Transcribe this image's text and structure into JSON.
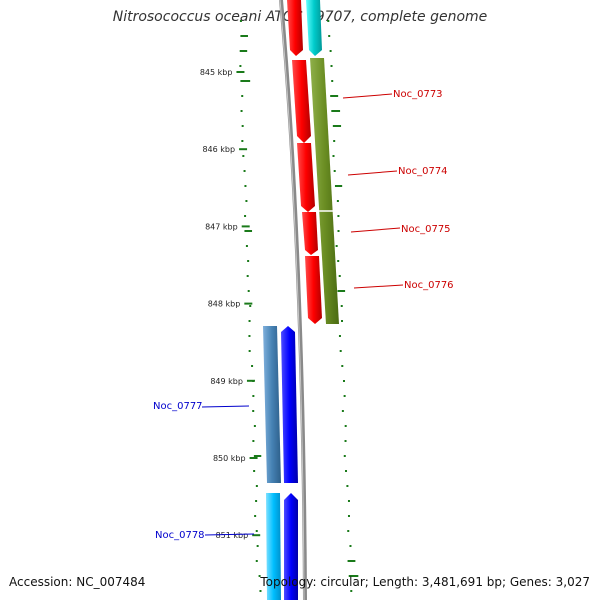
{
  "title": "Nitrosococcus oceani ATCC 19707, complete genome",
  "accession": "Accession: NC_007484",
  "topology": "Topology: circular; Length: 3,481,691 bp; Genes: 3,027",
  "ticks": [
    {
      "label": "845 kbp",
      "kbp": 845
    },
    {
      "label": "846 kbp",
      "kbp": 846
    },
    {
      "label": "847 kbp",
      "kbp": 847
    },
    {
      "label": "848 kbp",
      "kbp": 848
    },
    {
      "label": "849 kbp",
      "kbp": 849
    },
    {
      "label": "850 kbp",
      "kbp": 850
    },
    {
      "label": "851 kbp",
      "kbp": 851
    }
  ],
  "genes_forward_labeled": [
    {
      "name": "Noc_0773",
      "color": "#cc0000"
    },
    {
      "name": "Noc_0774",
      "color": "#cc0000"
    },
    {
      "name": "Noc_0775",
      "color": "#cc0000"
    },
    {
      "name": "Noc_0776",
      "color": "#cc0000"
    }
  ],
  "genes_reverse_labeled": [
    {
      "name": "Noc_0777",
      "color": "#0000cc"
    },
    {
      "name": "Noc_0778",
      "color": "#0000cc"
    }
  ],
  "colors": {
    "cds_forward": "#ff0000",
    "cds_reverse": "#0000ff",
    "cog_green": "#6b8e23",
    "cog_cyan": "#00cccc",
    "cog_steel": "#4682b4",
    "cog_lightblue": "#00bfff",
    "backbone": "#888888",
    "gc_dots": "#1a7a1a"
  }
}
